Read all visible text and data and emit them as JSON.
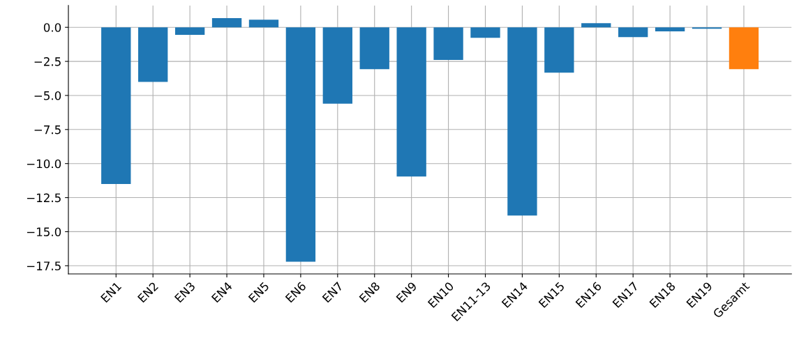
{
  "chart_data": {
    "type": "bar",
    "categories": [
      "EN1",
      "EN2",
      "EN3",
      "EN4",
      "EN5",
      "EN6",
      "EN7",
      "EN8",
      "EN9",
      "EN10",
      "EN11-13",
      "EN14",
      "EN15",
      "EN16",
      "EN17",
      "EN18",
      "EN19",
      "Gesamt"
    ],
    "values": [
      -11.5,
      -4.0,
      -0.55,
      0.67,
      0.56,
      -17.2,
      -5.6,
      -3.07,
      -10.95,
      -2.4,
      -0.77,
      -13.82,
      -3.33,
      0.3,
      -0.72,
      -0.3,
      -0.1,
      -3.07
    ],
    "colors": [
      "#1f77b4",
      "#1f77b4",
      "#1f77b4",
      "#1f77b4",
      "#1f77b4",
      "#1f77b4",
      "#1f77b4",
      "#1f77b4",
      "#1f77b4",
      "#1f77b4",
      "#1f77b4",
      "#1f77b4",
      "#1f77b4",
      "#1f77b4",
      "#1f77b4",
      "#1f77b4",
      "#1f77b4",
      "#ff7f0e"
    ],
    "ylim": [
      -18.1,
      1.6
    ],
    "yticks": [
      {
        "value": 0,
        "label": "0.0"
      },
      {
        "value": -2.5,
        "label": "−2.5"
      },
      {
        "value": -5,
        "label": "−5.0"
      },
      {
        "value": -7.5,
        "label": "−7.5"
      },
      {
        "value": -10,
        "label": "−10.0"
      },
      {
        "value": -12.5,
        "label": "−12.5"
      },
      {
        "value": -15,
        "label": "−15.0"
      },
      {
        "value": -17.5,
        "label": "−17.5"
      }
    ],
    "grid": true
  }
}
